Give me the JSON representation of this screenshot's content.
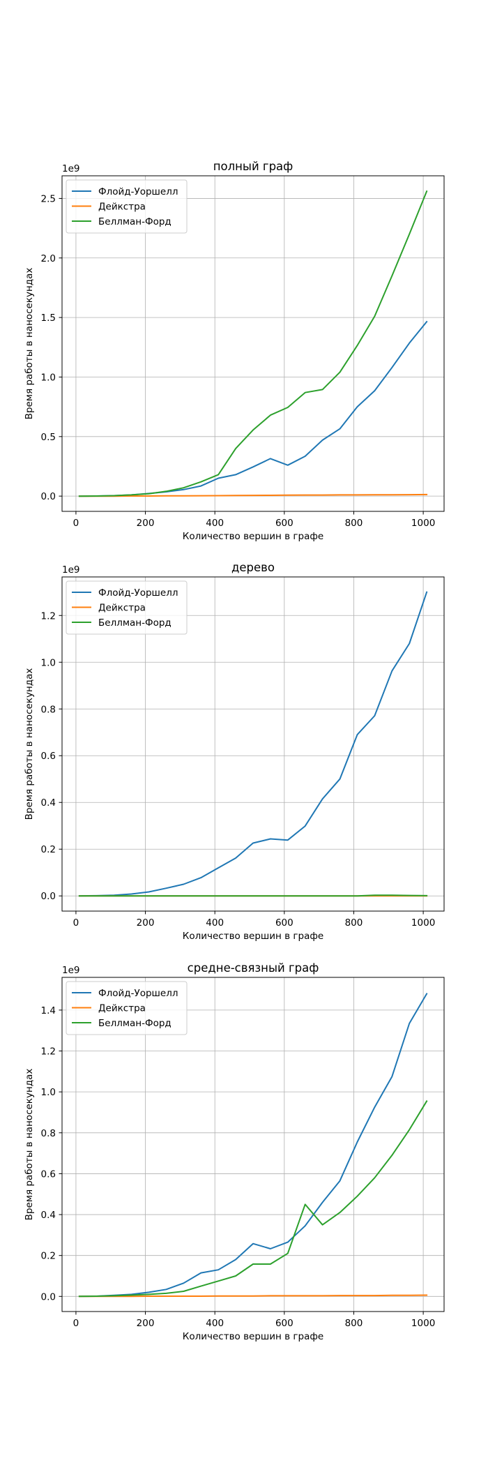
{
  "chart_data": [
    {
      "type": "line",
      "title": "полный граф",
      "xlabel": "Количество вершин в графе",
      "ylabel": "Время работы в наносекундах",
      "y_exponent_label": "1e9",
      "xlim": [
        -40,
        1060
      ],
      "ylim": [
        -0.128,
        2.69
      ],
      "x_ticks": [
        0,
        200,
        400,
        600,
        800,
        1000
      ],
      "x_tick_labels": [
        "0",
        "200",
        "400",
        "600",
        "800",
        "1000"
      ],
      "y_ticks": [
        0.0,
        0.5,
        1.0,
        1.5,
        2.0,
        2.5
      ],
      "y_tick_labels": [
        "0.0",
        "0.5",
        "1.0",
        "1.5",
        "2.0",
        "2.5"
      ],
      "grid": true,
      "legend_position": "upper-left",
      "x": [
        10,
        60,
        110,
        160,
        210,
        260,
        310,
        360,
        410,
        460,
        510,
        560,
        610,
        660,
        710,
        760,
        810,
        860,
        910,
        960,
        1010
      ],
      "series": [
        {
          "name": "Флойд-Уоршелл",
          "color": "#1f77b4",
          "values": [
            0.0,
            0.001,
            0.004,
            0.01,
            0.022,
            0.036,
            0.055,
            0.085,
            0.15,
            0.18,
            0.245,
            0.315,
            0.26,
            0.335,
            0.47,
            0.565,
            0.75,
            0.885,
            1.08,
            1.285,
            1.465
          ]
        },
        {
          "name": "Дейкстра",
          "color": "#ff7f0e",
          "values": [
            0.0,
            0.0,
            0.0,
            0.001,
            0.001,
            0.002,
            0.002,
            0.003,
            0.004,
            0.005,
            0.006,
            0.007,
            0.008,
            0.009,
            0.009,
            0.01,
            0.01,
            0.011,
            0.011,
            0.012,
            0.013
          ]
        },
        {
          "name": "Беллман-Форд",
          "color": "#2ca02c",
          "values": [
            0.0,
            0.001,
            0.004,
            0.01,
            0.02,
            0.04,
            0.07,
            0.12,
            0.18,
            0.4,
            0.555,
            0.68,
            0.745,
            0.87,
            0.895,
            1.04,
            1.265,
            1.51,
            1.85,
            2.2,
            2.56
          ]
        }
      ]
    },
    {
      "type": "line",
      "title": "дерево",
      "xlabel": "Количество вершин в графе",
      "ylabel": "Время работы в наносекундах",
      "y_exponent_label": "1e9",
      "xlim": [
        -40,
        1060
      ],
      "ylim": [
        -0.065,
        1.365
      ],
      "x_ticks": [
        0,
        200,
        400,
        600,
        800,
        1000
      ],
      "x_tick_labels": [
        "0",
        "200",
        "400",
        "600",
        "800",
        "1000"
      ],
      "y_ticks": [
        0.0,
        0.2,
        0.4,
        0.6,
        0.8,
        1.0,
        1.2
      ],
      "y_tick_labels": [
        "0.0",
        "0.2",
        "0.4",
        "0.6",
        "0.8",
        "1.0",
        "1.2"
      ],
      "grid": true,
      "legend_position": "upper-left",
      "x": [
        10,
        60,
        110,
        160,
        210,
        260,
        310,
        360,
        410,
        460,
        510,
        560,
        610,
        660,
        710,
        760,
        810,
        860,
        910,
        960,
        1010
      ],
      "series": [
        {
          "name": "Флойд-Уоршелл",
          "color": "#1f77b4",
          "values": [
            0.0,
            0.001,
            0.003,
            0.008,
            0.017,
            0.033,
            0.05,
            0.078,
            0.12,
            0.162,
            0.226,
            0.244,
            0.239,
            0.299,
            0.415,
            0.5,
            0.69,
            0.771,
            0.963,
            1.08,
            1.3
          ]
        },
        {
          "name": "Дейкстра",
          "color": "#ff7f0e",
          "values": [
            0.0,
            0.0,
            0.0,
            0.0,
            0.0,
            0.0,
            0.0,
            0.0,
            0.0,
            0.0,
            0.0,
            0.0,
            0.0,
            0.0,
            0.0,
            0.0,
            0.0,
            0.0,
            0.0,
            0.0,
            0.0
          ]
        },
        {
          "name": "Беллман-Форд",
          "color": "#2ca02c",
          "values": [
            0.0,
            0.0,
            0.0,
            0.0,
            0.0,
            0.0,
            0.0,
            0.0,
            0.0,
            0.0,
            0.0,
            0.0,
            0.0,
            0.0,
            0.0,
            0.0,
            0.0,
            0.003,
            0.003,
            0.002,
            0.001
          ]
        }
      ]
    },
    {
      "type": "line",
      "title": "средне-связный граф",
      "xlabel": "Количество вершин в графе",
      "ylabel": "Время работы в наносекундах",
      "y_exponent_label": "1e9",
      "xlim": [
        -40,
        1060
      ],
      "ylim": [
        -0.074,
        1.56
      ],
      "x_ticks": [
        0,
        200,
        400,
        600,
        800,
        1000
      ],
      "x_tick_labels": [
        "0",
        "200",
        "400",
        "600",
        "800",
        "1000"
      ],
      "y_ticks": [
        0.0,
        0.2,
        0.4,
        0.6,
        0.8,
        1.0,
        1.2,
        1.4
      ],
      "y_tick_labels": [
        "0.0",
        "0.2",
        "0.4",
        "0.6",
        "0.8",
        "1.0",
        "1.2",
        "1.4"
      ],
      "grid": true,
      "legend_position": "upper-left",
      "x": [
        10,
        60,
        110,
        160,
        210,
        260,
        310,
        360,
        410,
        460,
        510,
        560,
        610,
        660,
        710,
        760,
        810,
        860,
        910,
        960,
        1010
      ],
      "series": [
        {
          "name": "Флойд-Уоршелл",
          "color": "#1f77b4",
          "values": [
            0.0,
            0.001,
            0.005,
            0.01,
            0.02,
            0.034,
            0.065,
            0.115,
            0.13,
            0.18,
            0.258,
            0.233,
            0.265,
            0.345,
            0.46,
            0.565,
            0.755,
            0.925,
            1.075,
            1.335,
            1.48
          ]
        },
        {
          "name": "Дейкстра",
          "color": "#ff7f0e",
          "values": [
            0.0,
            0.0,
            0.0,
            0.0,
            0.001,
            0.001,
            0.001,
            0.001,
            0.002,
            0.002,
            0.002,
            0.003,
            0.003,
            0.003,
            0.003,
            0.004,
            0.004,
            0.004,
            0.005,
            0.005,
            0.006
          ]
        },
        {
          "name": "Беллман-Форд",
          "color": "#2ca02c",
          "values": [
            0.0,
            0.001,
            0.003,
            0.006,
            0.01,
            0.015,
            0.025,
            0.05,
            0.075,
            0.1,
            0.158,
            0.158,
            0.21,
            0.45,
            0.35,
            0.41,
            0.49,
            0.58,
            0.69,
            0.815,
            0.955
          ]
        }
      ]
    }
  ]
}
